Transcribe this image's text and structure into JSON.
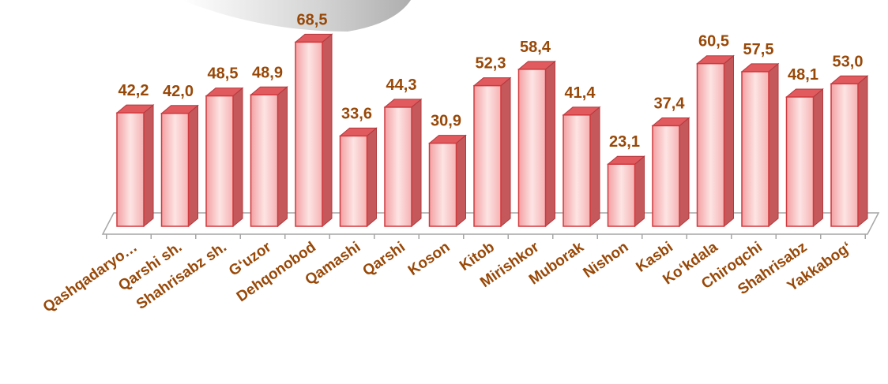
{
  "chart_data": {
    "type": "bar",
    "categories": [
      "Qashqadaryo…",
      "Qarshi sh.",
      "Shahrisabz sh.",
      "G‘uzor",
      "Dehqonobod",
      "Qamashi",
      "Qarshi",
      "Koson",
      "Kitob",
      "Mirishkor",
      "Muborak",
      "Nishon",
      "Kasbi",
      "Ko‘kdala",
      "Chiroqchi",
      "Shahrisabz",
      "Yakkabog‘"
    ],
    "values": [
      42.2,
      42.0,
      48.5,
      48.9,
      68.5,
      33.6,
      44.3,
      30.9,
      52.3,
      58.4,
      41.4,
      23.1,
      37.4,
      60.5,
      57.5,
      48.1,
      53.0
    ],
    "value_labels": [
      "42,2",
      "42,0",
      "48,5",
      "48,9",
      "68,5",
      "33,6",
      "44,3",
      "30,9",
      "52,3",
      "58,4",
      "41,4",
      "23,1",
      "37,4",
      "60,5",
      "57,5",
      "48,1",
      "53,0"
    ],
    "color": "#e05a5e"
  }
}
